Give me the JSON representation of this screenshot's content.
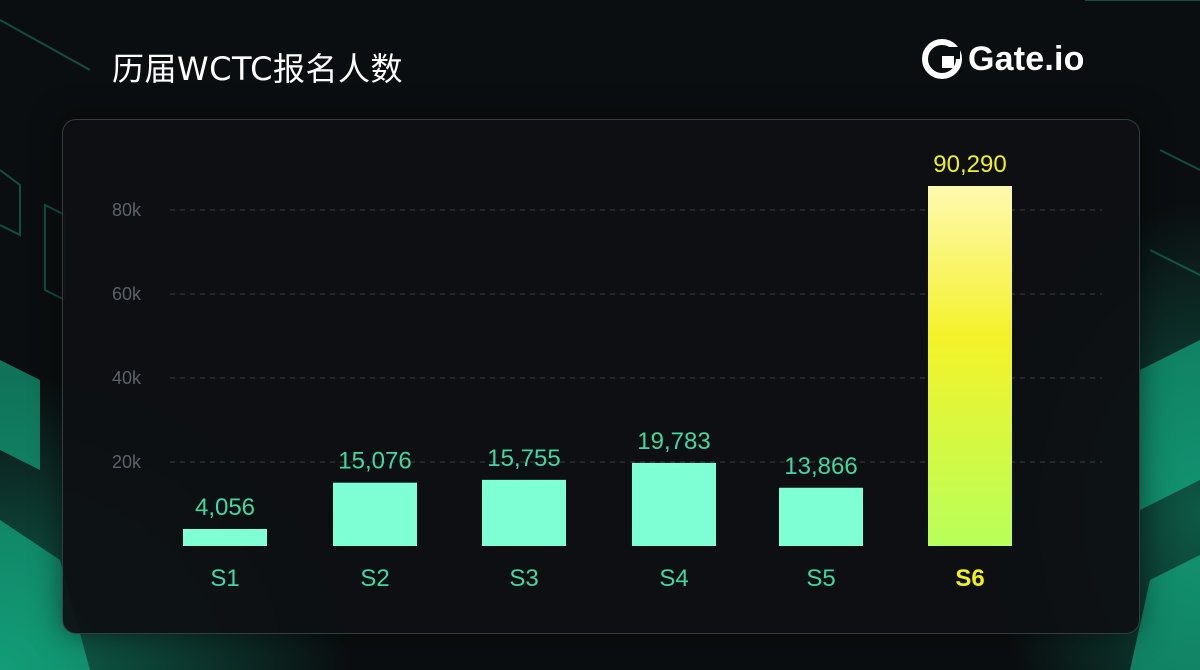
{
  "header": {
    "title": "历届WCTC报名人数",
    "logo_text": "Gate.io"
  },
  "colors": {
    "bar": "#7fffd4",
    "highlight_top": "#fff9b0",
    "highlight_mid": "#f4f22a",
    "highlight_bottom": "#b8ff5a",
    "label_normal": "#3fd8a0",
    "label_highlight": "#eef21a",
    "axis_tick": "#5b6266",
    "grid": "#3a3f42"
  },
  "chart_data": {
    "type": "bar",
    "title": "历届WCTC报名人数",
    "categories": [
      "S1",
      "S2",
      "S3",
      "S4",
      "S5",
      "S6"
    ],
    "values": [
      4056,
      15076,
      15755,
      19783,
      13866,
      90290
    ],
    "value_labels": [
      "4,056",
      "15,076",
      "15,755",
      "19,783",
      "13,866",
      "90,290"
    ],
    "highlight_index": 5,
    "yticks": [
      20000,
      40000,
      60000,
      80000
    ],
    "ytick_labels": [
      "20k",
      "40k",
      "60k",
      "80k"
    ],
    "ylim": [
      0,
      80000
    ],
    "grid": true,
    "xlabel": "",
    "ylabel": ""
  }
}
